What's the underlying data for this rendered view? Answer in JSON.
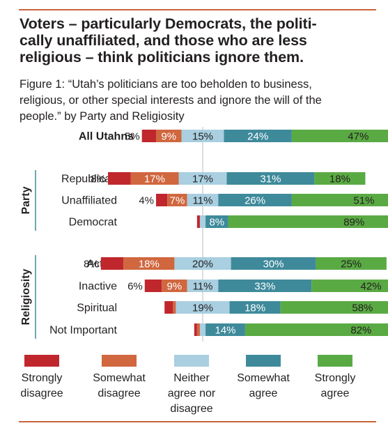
{
  "title": "Voters – particularly Democrats, the politi-cally unaffiliated, and those who are less religious – think politicians ignore them.",
  "title_lines": [
    "Voters – particularly Democrats, the politi-",
    "cally unaffiliated, and those who are less",
    "religious – think politicians ignore them."
  ],
  "subtitle": "Figure 1: “Utah’s politicians are too beholden to business, religious, or other special interests and ignore the will of the people.” by Party and Religiosity",
  "subtitle_lines": [
    "Figure 1: “Utah’s politicians are too beholden to business,",
    "religious, or other special interests and ignore the will of the",
    "people.” by Party and Religiosity"
  ],
  "colors": {
    "strongly_disagree": "#c0272d",
    "somewhat_disagree": "#d0673f",
    "neither": "#a9cfe0",
    "somewhat_agree": "#3e8a9b",
    "strongly_agree": "#5aaa44",
    "rule": "#c8643c",
    "group_rule": "#3e8a9b"
  },
  "chart_data": {
    "type": "bar",
    "orientation": "horizontal",
    "stacked": "diverging",
    "center": "middle of Neither agree nor disagree",
    "series": [
      {
        "name": "Strongly disagree",
        "color": "#c0272d"
      },
      {
        "name": "Somewhat disagree",
        "color": "#d0673f"
      },
      {
        "name": "Neither agree nor disagree",
        "color": "#a9cfe0"
      },
      {
        "name": "Somewhat agree",
        "color": "#3e8a9b"
      },
      {
        "name": "Strongly agree",
        "color": "#5aaa44"
      }
    ],
    "groups": [
      {
        "label": "",
        "rows": [
          {
            "category": "All Utahns",
            "bold": true,
            "values": [
              5,
              9,
              15,
              24,
              47
            ],
            "labels": [
              "5%",
              "9%",
              "15%",
              "24%",
              "47%"
            ]
          }
        ]
      },
      {
        "label": "Party",
        "rows": [
          {
            "category": "Republican",
            "values": [
              8,
              17,
              17,
              31,
              18
            ],
            "labels": [
              "8%",
              "17%",
              "17%",
              "31%",
              "18%"
            ]
          },
          {
            "category": "Unaffiliated",
            "values": [
              4,
              7,
              11,
              26,
              51
            ],
            "labels": [
              "4%",
              "7%",
              "11%",
              "26%",
              "51%"
            ]
          },
          {
            "category": "Democrat",
            "values": [
              1,
              0,
              2,
              8,
              89
            ],
            "labels": [
              "",
              "",
              "",
              "8%",
              "89%"
            ]
          }
        ]
      },
      {
        "label": "Religiosity",
        "rows": [
          {
            "category": "Active",
            "values": [
              8,
              18,
              20,
              30,
              25
            ],
            "labels": [
              "8%",
              "18%",
              "20%",
              "30%",
              "25%"
            ]
          },
          {
            "category": "Inactive",
            "values": [
              6,
              9,
              11,
              33,
              42
            ],
            "labels": [
              "6%",
              "9%",
              "11%",
              "33%",
              "42%"
            ]
          },
          {
            "category": "Spiritual",
            "values": [
              3,
              1,
              19,
              18,
              58
            ],
            "labels": [
              "",
              "",
              "19%",
              "18%",
              "58%"
            ]
          },
          {
            "category": "Not Important",
            "values": [
              1,
              1,
              2,
              14,
              82
            ],
            "labels": [
              "",
              "",
              "",
              "14%",
              "82%"
            ]
          }
        ]
      }
    ]
  },
  "legend": [
    {
      "lines": [
        "Strongly",
        "disagree"
      ],
      "color": "#c0272d"
    },
    {
      "lines": [
        "Somewhat",
        "disagree"
      ],
      "color": "#d0673f"
    },
    {
      "lines": [
        "Neither",
        "agree nor",
        "disagree"
      ],
      "color": "#a9cfe0"
    },
    {
      "lines": [
        "Somewhat",
        "agree"
      ],
      "color": "#3e8a9b"
    },
    {
      "lines": [
        "Strongly",
        "agree"
      ],
      "color": "#5aaa44"
    }
  ]
}
